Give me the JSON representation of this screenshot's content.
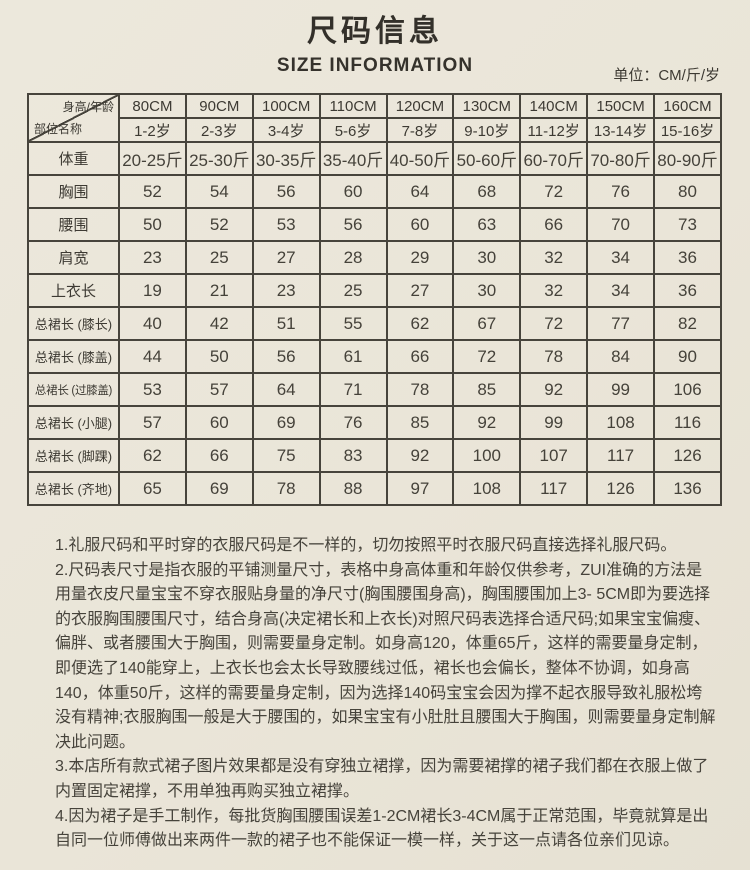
{
  "header": {
    "title": "尺码信息",
    "subtitle": "SIZE INFORMATION",
    "unit": "单位：CM/斤/岁"
  },
  "size_table": {
    "corner": {
      "top_right": "身高/年龄",
      "bottom_left": "部位名称"
    },
    "height_headers": [
      "80CM",
      "90CM",
      "100CM",
      "110CM",
      "120CM",
      "130CM",
      "140CM",
      "150CM",
      "160CM"
    ],
    "age_headers": [
      "1-2岁",
      "2-3岁",
      "3-4岁",
      "5-6岁",
      "7-8岁",
      "9-10岁",
      "11-12岁",
      "13-14岁",
      "15-16岁"
    ],
    "rows": [
      {
        "label": "体重",
        "values": [
          "20-25斤",
          "25-30斤",
          "30-35斤",
          "35-40斤",
          "40-50斤",
          "50-60斤",
          "60-70斤",
          "70-80斤",
          "80-90斤"
        ]
      },
      {
        "label": "胸围",
        "values": [
          "52",
          "54",
          "56",
          "60",
          "64",
          "68",
          "72",
          "76",
          "80"
        ]
      },
      {
        "label": "腰围",
        "values": [
          "50",
          "52",
          "53",
          "56",
          "60",
          "63",
          "66",
          "70",
          "73"
        ]
      },
      {
        "label": "肩宽",
        "values": [
          "23",
          "25",
          "27",
          "28",
          "29",
          "30",
          "32",
          "34",
          "36"
        ]
      },
      {
        "label": "上衣长",
        "values": [
          "19",
          "21",
          "23",
          "25",
          "27",
          "30",
          "32",
          "34",
          "36"
        ]
      },
      {
        "label": "总裙长 (膝长)",
        "values": [
          "40",
          "42",
          "51",
          "55",
          "62",
          "67",
          "72",
          "77",
          "82"
        ]
      },
      {
        "label": "总裙长 (膝盖)",
        "values": [
          "44",
          "50",
          "56",
          "61",
          "66",
          "72",
          "78",
          "84",
          "90"
        ]
      },
      {
        "label": "总裙长 (过膝盖)",
        "values": [
          "53",
          "57",
          "64",
          "71",
          "78",
          "85",
          "92",
          "99",
          "106"
        ]
      },
      {
        "label": "总裙长 (小腿)",
        "values": [
          "57",
          "60",
          "69",
          "76",
          "85",
          "92",
          "99",
          "108",
          "116"
        ]
      },
      {
        "label": "总裙长 (脚踝)",
        "values": [
          "62",
          "66",
          "75",
          "83",
          "92",
          "100",
          "107",
          "117",
          "126"
        ]
      },
      {
        "label": "总裙长 (齐地)",
        "values": [
          "65",
          "69",
          "78",
          "88",
          "97",
          "108",
          "117",
          "126",
          "136"
        ]
      }
    ]
  },
  "notes": [
    "1.礼服尺码和平时穿的衣服尺码是不一样的，切勿按照平时衣服尺码直接选择礼服尺码。",
    "2.尺码表尺寸是指衣服的平铺测量尺寸，表格中身高体重和年龄仅供参考，ZUI准确的方法是用量衣皮尺量宝宝不穿衣服贴身量的净尺寸(胸围腰围身高)，胸围腰围加上3- 5CM即为要选择的衣服胸围腰围尺寸，结合身高(决定裙长和上衣长)对照尺码表选择合适尺码;如果宝宝偏瘦、偏胖、或者腰围大于胸围，则需要量身定制。如身高120，体重65斤，这样的需要量身定制，即便选了140能穿上，上衣长也会太长导致腰线过低，裙长也会偏长，整体不协调，如身高140，体重50斤，这样的需要量身定制，因为选择140码宝宝会因为撑不起衣服导致礼服松垮没有精神;衣服胸围一般是大于腰围的，如果宝宝有小肚肚且腰围大于胸围，则需要量身定制解决此问题。",
    "3.本店所有款式裙子图片效果都是没有穿独立裙撑，因为需要裙撑的裙子我们都在衣服上做了内置固定裙撑，不用单独再购买独立裙撑。",
    "4.因为裙子是手工制作，每批货胸围腰围误差1-2CM裙长3-4CM属于正常范围，毕竟就算是出自同一位师傅做出来两件一款的裙子也不能保证一模一样，关于这一点请各位亲们见谅。"
  ],
  "colors": {
    "background": "#eae5d8",
    "text": "#3d3a33",
    "table_border": "#47443c",
    "value_text": "#45423a"
  }
}
